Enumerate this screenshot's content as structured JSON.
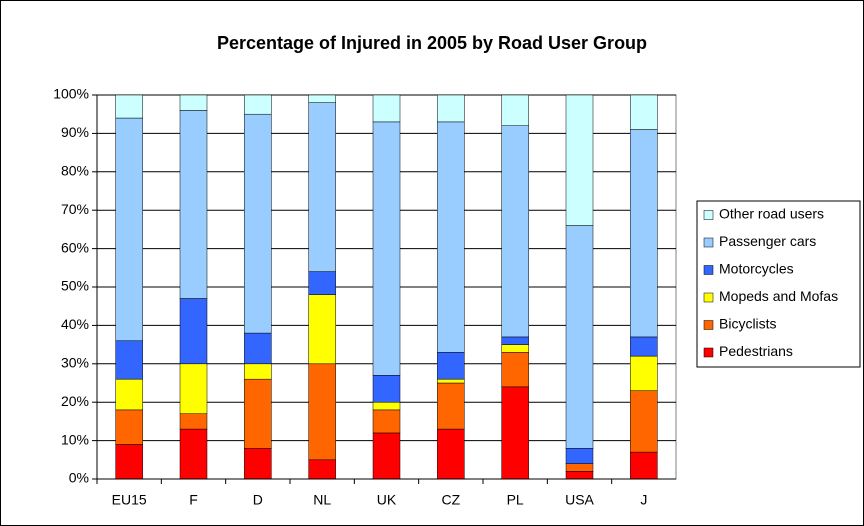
{
  "chart_data": {
    "type": "stacked_bar_percent",
    "title": "Percentage of Injured in 2005 by Road User Group",
    "categories": [
      "EU15",
      "F",
      "D",
      "NL",
      "UK",
      "CZ",
      "PL",
      "USA",
      "J"
    ],
    "series": [
      {
        "name": "Pedestrians",
        "color": "#ff0000",
        "values": [
          9,
          13,
          8,
          5,
          12,
          13,
          24,
          2,
          7
        ]
      },
      {
        "name": "Bicyclists",
        "color": "#ff6600",
        "values": [
          9,
          4,
          18,
          25,
          6,
          12,
          9,
          2,
          16
        ]
      },
      {
        "name": "Mopeds and Mofas",
        "color": "#ffff00",
        "values": [
          8,
          13,
          4,
          18,
          2,
          1,
          2,
          0,
          9
        ]
      },
      {
        "name": "Motorcycles",
        "color": "#3366ff",
        "values": [
          10,
          17,
          8,
          6,
          7,
          7,
          2,
          4,
          5
        ]
      },
      {
        "name": "Passenger cars",
        "color": "#99ccff",
        "values": [
          58,
          49,
          57,
          44,
          66,
          60,
          55,
          58,
          54
        ]
      },
      {
        "name": "Other road users",
        "color": "#ccffff",
        "values": [
          6,
          4,
          5,
          2,
          7,
          7,
          8,
          34,
          9
        ]
      }
    ],
    "ylim": [
      0,
      100
    ],
    "yticks": [
      {
        "value": 0,
        "label": "0%"
      },
      {
        "value": 10,
        "label": "10%"
      },
      {
        "value": 20,
        "label": "20%"
      },
      {
        "value": 30,
        "label": "30%"
      },
      {
        "value": 40,
        "label": "40%"
      },
      {
        "value": 50,
        "label": "50%"
      },
      {
        "value": 60,
        "label": "60%"
      },
      {
        "value": 70,
        "label": "70%"
      },
      {
        "value": 80,
        "label": "80%"
      },
      {
        "value": 90,
        "label": "90%"
      },
      {
        "value": 100,
        "label": "100%"
      }
    ],
    "grid": true,
    "legend": "right"
  }
}
